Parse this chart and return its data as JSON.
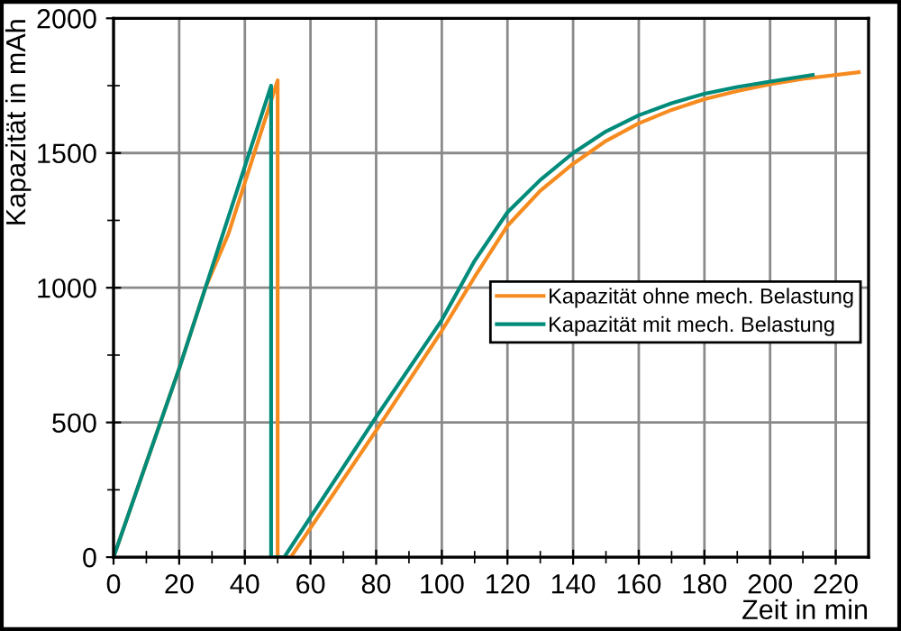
{
  "chart_data": {
    "type": "line",
    "xlabel": "Zeit in min",
    "ylabel": "Kapazität in mAh",
    "xlim": [
      0,
      230
    ],
    "ylim": [
      0,
      2000
    ],
    "xticks": [
      0,
      {
        "value": 10,
        "label": null
      },
      20,
      {
        "value": 30,
        "label": null
      },
      40,
      {
        "value": 50,
        "label": null
      },
      60,
      {
        "value": 70,
        "label": null
      },
      80,
      {
        "value": 90,
        "label": null
      },
      100,
      {
        "value": 110,
        "label": null
      },
      120,
      {
        "value": 130,
        "label": null
      },
      140,
      {
        "value": 150,
        "label": null
      },
      160,
      {
        "value": 170,
        "label": null
      },
      180,
      {
        "value": 190,
        "label": null
      },
      200,
      {
        "value": 210,
        "label": null
      },
      220
    ],
    "yticks": [
      0,
      {
        "value": 250,
        "label": null
      },
      500,
      {
        "value": 750,
        "label": null
      },
      1000,
      {
        "value": 1250,
        "label": null
      },
      1500,
      {
        "value": 1750,
        "label": null
      },
      2000
    ],
    "grid": true,
    "legend": "right",
    "marker": "none",
    "line_style": "solid",
    "series": [
      {
        "name": "Kapazität ohne mech. Belastung",
        "color": "#f68b1f",
        "x": [
          0,
          20,
          28,
          35,
          50,
          50,
          54,
          80,
          100,
          110,
          120,
          130,
          140,
          150,
          160,
          170,
          180,
          190,
          200,
          210,
          227
        ],
        "values": [
          0,
          700,
          1000,
          1200,
          1770,
          0,
          0,
          470,
          840,
          1040,
          1230,
          1360,
          1460,
          1545,
          1610,
          1660,
          1700,
          1730,
          1755,
          1775,
          1800
        ]
      },
      {
        "name": "Kapazität mit mech. Belastung",
        "color": "#008b7a",
        "x": [
          0,
          20,
          48,
          48,
          52,
          80,
          100,
          110,
          120,
          130,
          140,
          150,
          160,
          170,
          180,
          190,
          200,
          213
        ],
        "values": [
          0,
          700,
          1750,
          0,
          0,
          520,
          880,
          1100,
          1280,
          1400,
          1500,
          1580,
          1640,
          1685,
          1720,
          1745,
          1765,
          1790
        ]
      }
    ]
  }
}
